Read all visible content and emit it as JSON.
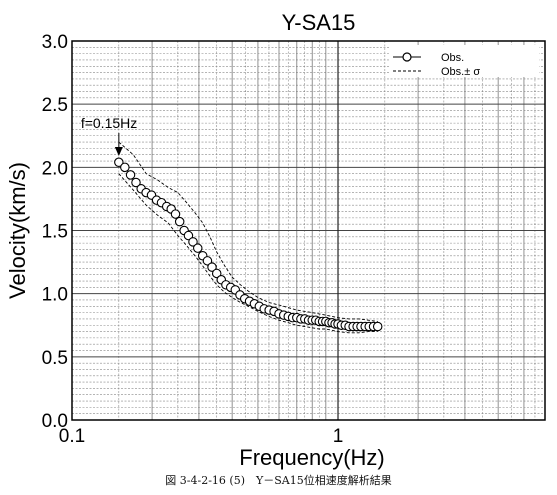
{
  "chart_data": {
    "type": "scatter",
    "title": "Y-SA15",
    "xlabel": "Frequency(Hz)",
    "ylabel": "Velocity(km/s)",
    "xscale": "log",
    "xlim": [
      0.1,
      6
    ],
    "ylim": [
      0.0,
      3.0
    ],
    "x_ticks": [
      {
        "v": 0.1,
        "label": "0.1"
      },
      {
        "v": 1,
        "label": "1"
      }
    ],
    "y_ticks": [
      {
        "v": 0.0,
        "label": "0.0"
      },
      {
        "v": 0.5,
        "label": "0.5"
      },
      {
        "v": 1.0,
        "label": "1.0"
      },
      {
        "v": 1.5,
        "label": "1.5"
      },
      {
        "v": 2.0,
        "label": "2.0"
      },
      {
        "v": 2.5,
        "label": "2.5"
      },
      {
        "v": 3.0,
        "label": "3.0"
      }
    ],
    "grid": true,
    "legend_position": "top-right",
    "annotation": {
      "text": "f=0.15Hz",
      "x": 0.15,
      "y": 2.05
    },
    "series": [
      {
        "name": "Obs.",
        "marker": "open-circle",
        "x": [
          0.15,
          0.158,
          0.166,
          0.174,
          0.182,
          0.19,
          0.199,
          0.208,
          0.217,
          0.227,
          0.236,
          0.245,
          0.254,
          0.264,
          0.274,
          0.285,
          0.297,
          0.31,
          0.323,
          0.336,
          0.35,
          0.364,
          0.379,
          0.395,
          0.411,
          0.428,
          0.446,
          0.465,
          0.485,
          0.506,
          0.528,
          0.551,
          0.575,
          0.6,
          0.625,
          0.65,
          0.675,
          0.7,
          0.725,
          0.75,
          0.775,
          0.8,
          0.825,
          0.85,
          0.875,
          0.9,
          0.925,
          0.95,
          0.975,
          1.0,
          1.03,
          1.065,
          1.1,
          1.14,
          1.18,
          1.22,
          1.265,
          1.31,
          1.36,
          1.41
        ],
        "y": [
          2.04,
          2.0,
          1.94,
          1.88,
          1.83,
          1.8,
          1.78,
          1.74,
          1.72,
          1.69,
          1.67,
          1.63,
          1.57,
          1.5,
          1.46,
          1.41,
          1.36,
          1.3,
          1.26,
          1.21,
          1.16,
          1.11,
          1.07,
          1.05,
          1.03,
          0.99,
          0.96,
          0.94,
          0.92,
          0.9,
          0.88,
          0.87,
          0.86,
          0.84,
          0.83,
          0.82,
          0.81,
          0.81,
          0.8,
          0.8,
          0.79,
          0.79,
          0.79,
          0.78,
          0.78,
          0.78,
          0.77,
          0.77,
          0.76,
          0.76,
          0.75,
          0.75,
          0.74,
          0.74,
          0.74,
          0.74,
          0.74,
          0.74,
          0.74,
          0.74
        ]
      },
      {
        "name": "Obs.± σ",
        "style": "dashed",
        "upper": {
          "x": [
            0.15,
            0.17,
            0.19,
            0.21,
            0.23,
            0.25,
            0.27,
            0.29,
            0.31,
            0.33,
            0.35,
            0.375,
            0.4,
            0.43,
            0.46,
            0.5,
            0.55,
            0.6,
            0.65,
            0.7,
            0.75,
            0.8,
            0.85,
            0.9,
            0.95,
            1.0,
            1.1,
            1.2,
            1.3,
            1.41
          ],
          "y": [
            2.2,
            2.1,
            1.95,
            1.9,
            1.84,
            1.8,
            1.72,
            1.64,
            1.56,
            1.45,
            1.33,
            1.22,
            1.13,
            1.07,
            1.02,
            0.97,
            0.93,
            0.91,
            0.89,
            0.87,
            0.86,
            0.85,
            0.84,
            0.83,
            0.82,
            0.81,
            0.8,
            0.8,
            0.79,
            0.78
          ]
        },
        "lower": {
          "x": [
            0.15,
            0.17,
            0.19,
            0.21,
            0.23,
            0.25,
            0.27,
            0.29,
            0.31,
            0.33,
            0.35,
            0.375,
            0.4,
            0.43,
            0.46,
            0.5,
            0.55,
            0.6,
            0.65,
            0.7,
            0.75,
            0.8,
            0.85,
            0.9,
            0.95,
            1.0,
            1.1,
            1.2,
            1.3,
            1.41
          ],
          "y": [
            1.95,
            1.82,
            1.7,
            1.62,
            1.56,
            1.46,
            1.38,
            1.3,
            1.22,
            1.14,
            1.07,
            1.01,
            0.97,
            0.93,
            0.9,
            0.86,
            0.82,
            0.79,
            0.77,
            0.75,
            0.74,
            0.73,
            0.72,
            0.72,
            0.71,
            0.7,
            0.69,
            0.69,
            0.7,
            0.7
          ]
        }
      }
    ]
  },
  "caption": "図 3-4-2-16 (5)　Y－SA15位相速度解析結果"
}
